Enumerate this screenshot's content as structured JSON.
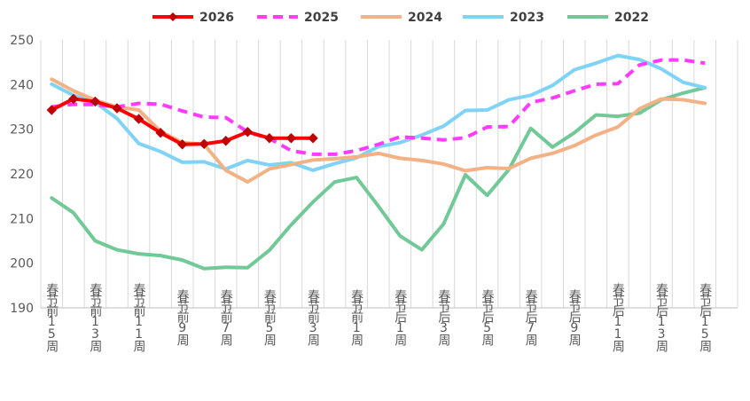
{
  "chart_data": {
    "type": "line",
    "title": "",
    "xlabel": "",
    "ylabel": "",
    "ylim": [
      190,
      250
    ],
    "yticks": [
      190,
      200,
      210,
      220,
      230,
      240,
      250
    ],
    "grid": "vertical",
    "legend_position": "top",
    "x_count": 32,
    "x_tick_labels": [
      {
        "index": 0,
        "label": "春节前15周"
      },
      {
        "index": 2,
        "label": "春节前13周"
      },
      {
        "index": 4,
        "label": "春节前11周"
      },
      {
        "index": 6,
        "label": "春节前9周"
      },
      {
        "index": 8,
        "label": "春节前7周"
      },
      {
        "index": 10,
        "label": "春节前5周"
      },
      {
        "index": 12,
        "label": "春节前3周"
      },
      {
        "index": 14,
        "label": "春节前1周"
      },
      {
        "index": 16,
        "label": "春节后1周"
      },
      {
        "index": 18,
        "label": "春节后3周"
      },
      {
        "index": 20,
        "label": "春节后5周"
      },
      {
        "index": 22,
        "label": "春节后7周"
      },
      {
        "index": 24,
        "label": "春节后9周"
      },
      {
        "index": 26,
        "label": "春节后11周"
      },
      {
        "index": 28,
        "label": "春节后13周"
      },
      {
        "index": 30,
        "label": "春节后15周"
      }
    ],
    "series": [
      {
        "name": "2026",
        "color": "#ff0000",
        "markerColor": "#c00000",
        "dash": "",
        "width": 4,
        "marker": "diamond",
        "values": [
          234.3,
          236.8,
          236.2,
          234.7,
          232.3,
          229.2,
          226.6,
          226.7,
          227.4,
          229.4,
          228.0,
          228.0,
          228.0
        ]
      },
      {
        "name": "2025",
        "color": "#ff3bff",
        "dash": "11,7",
        "width": 4,
        "marker": "none",
        "values": [
          235.0,
          235.6,
          235.5,
          235.0,
          235.8,
          235.6,
          234.1,
          232.7,
          232.6,
          229.4,
          227.9,
          225.2,
          224.4,
          224.4,
          225.2,
          226.6,
          228.3,
          228.0,
          227.6,
          228.1,
          230.5,
          230.6,
          236.0,
          237.0,
          238.6,
          240.1,
          240.2,
          244.4,
          245.5,
          245.5,
          244.8
        ]
      },
      {
        "name": "2024",
        "color": "#f4b183",
        "dash": "",
        "width": 4,
        "marker": "none",
        "values": [
          241.2,
          238.6,
          236.5,
          235.0,
          234.3,
          229.5,
          227.0,
          226.6,
          220.8,
          218.2,
          221.1,
          222.1,
          223.1,
          223.4,
          223.8,
          224.6,
          223.5,
          223.0,
          222.2,
          220.7,
          221.4,
          221.2,
          223.5,
          224.6,
          226.3,
          228.7,
          230.5,
          234.6,
          236.8,
          236.6,
          235.8
        ]
      },
      {
        "name": "2023",
        "color": "#7fd3f7",
        "dash": "",
        "width": 4,
        "marker": "none",
        "values": [
          240.1,
          237.6,
          236.0,
          232.4,
          226.8,
          225.0,
          222.6,
          222.7,
          221.1,
          223.0,
          222.0,
          222.5,
          220.8,
          222.3,
          223.6,
          226.1,
          227.0,
          228.7,
          230.7,
          234.2,
          234.3,
          236.6,
          237.6,
          239.8,
          243.3,
          244.8,
          246.5,
          245.6,
          243.5,
          240.5,
          239.3
        ]
      },
      {
        "name": "2022",
        "color": "#70c997",
        "dash": "",
        "width": 4,
        "marker": "none",
        "values": [
          214.6,
          211.3,
          205.0,
          203.0,
          202.1,
          201.7,
          200.7,
          198.8,
          199.1,
          199.0,
          202.9,
          208.6,
          213.7,
          218.2,
          219.2,
          212.8,
          206.1,
          203.0,
          208.8,
          219.8,
          215.2,
          221.0,
          230.2,
          226.0,
          229.2,
          233.2,
          232.9,
          233.6,
          236.6,
          238.1,
          239.3
        ]
      }
    ]
  }
}
